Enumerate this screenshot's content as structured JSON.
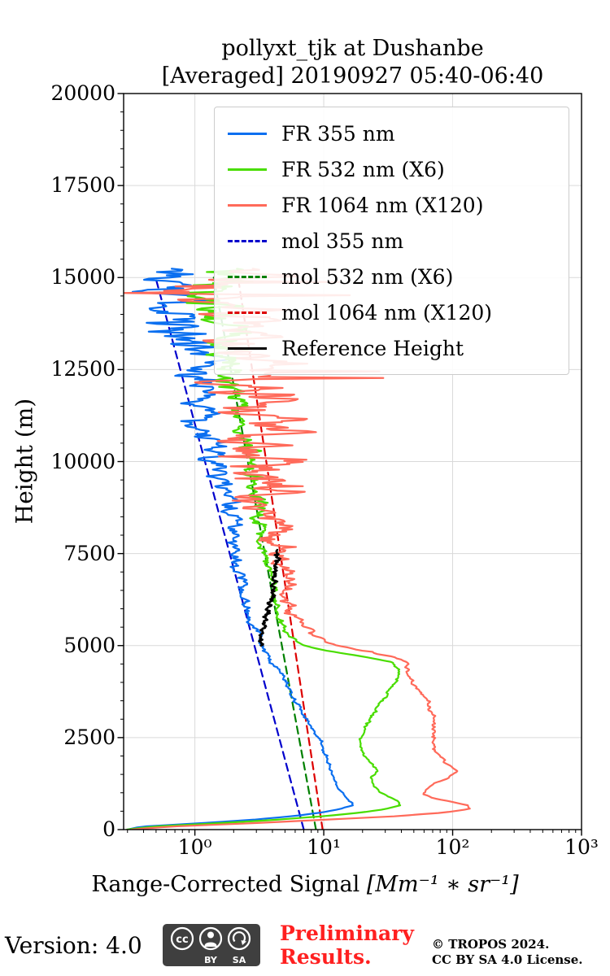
{
  "footer": {
    "version": "Version: 4.0",
    "preliminary_line1": "Preliminary",
    "preliminary_line2": "Results.",
    "copyright_line1": "© TROPOS 2024.",
    "copyright_line2": "CC BY SA 4.0 License.",
    "cc_badge": "cc BY SA"
  },
  "chart_data": {
    "type": "line",
    "title": "pollyxt_tjk at Dushanbe",
    "subtitle": "[Averaged] 20190927 05:40-06:40",
    "xlabel": "Range-Corrected Signal",
    "xlabel_unit": "[Mm⁻¹ ∗ sr⁻¹]",
    "ylabel": "Height (m)",
    "xscale": "log",
    "xlim": [
      0.28,
      1000
    ],
    "ylim": [
      0,
      20000
    ],
    "grid": true,
    "legend_position": "top-center",
    "yticks": [
      0,
      2500,
      5000,
      7500,
      10000,
      12500,
      15000,
      17500,
      20000
    ],
    "xticks": [
      1,
      10,
      100,
      1000
    ],
    "xtick_labels": [
      "10⁰",
      "10¹",
      "10²",
      "10³"
    ],
    "grid_color": "#d9d9d9",
    "series": [
      {
        "name": "FR 355 nm",
        "color": "#0a6ff0",
        "dash": "solid",
        "width": 2.2,
        "step": 30,
        "zmin": 0,
        "zmax": 15250,
        "anchors": [
          [
            0,
            0.3
          ],
          [
            80,
            0.38
          ],
          [
            160,
            0.95
          ],
          [
            260,
            2.6
          ],
          [
            360,
            5.5
          ],
          [
            460,
            9.5
          ],
          [
            560,
            13.5
          ],
          [
            660,
            16.5
          ],
          [
            760,
            16.0
          ],
          [
            900,
            14.5
          ],
          [
            1100,
            13.0
          ],
          [
            1400,
            12.0
          ],
          [
            1700,
            11.2
          ],
          [
            2000,
            10.4
          ],
          [
            2300,
            9.6
          ],
          [
            2600,
            8.6
          ],
          [
            3000,
            7.3
          ],
          [
            3400,
            6.3
          ],
          [
            3800,
            5.4
          ],
          [
            4200,
            4.7
          ],
          [
            4600,
            3.95
          ],
          [
            5000,
            3.3
          ],
          [
            5500,
            3.0
          ],
          [
            6000,
            2.6
          ],
          [
            6500,
            2.45
          ],
          [
            7000,
            2.3
          ],
          [
            7500,
            2.15
          ],
          [
            8000,
            2.0
          ],
          [
            8500,
            1.87
          ],
          [
            9000,
            1.75
          ],
          [
            9500,
            1.6
          ],
          [
            10000,
            1.45
          ],
          [
            10500,
            1.35
          ],
          [
            11000,
            1.25
          ],
          [
            11500,
            1.15
          ],
          [
            12000,
            1.05
          ],
          [
            12500,
            0.97
          ],
          [
            13000,
            0.9
          ],
          [
            13500,
            0.84
          ],
          [
            14000,
            0.78
          ],
          [
            14500,
            0.73
          ],
          [
            15000,
            0.68
          ],
          [
            15250,
            0.66
          ]
        ],
        "noise_dex": [
          [
            0,
            0.008
          ],
          [
            4500,
            0.02
          ],
          [
            8000,
            0.05
          ],
          [
            10000,
            0.09
          ],
          [
            12000,
            0.16
          ],
          [
            13500,
            0.22
          ],
          [
            15300,
            0.24
          ]
        ],
        "spikes": false
      },
      {
        "name": "FR 532 nm (X6)",
        "color": "#49dd00",
        "dash": "solid",
        "width": 2.2,
        "step": 30,
        "zmin": 0,
        "zmax": 15250,
        "anchors": [
          [
            0,
            0.3
          ],
          [
            80,
            0.45
          ],
          [
            160,
            1.3
          ],
          [
            260,
            4.0
          ],
          [
            360,
            9.5
          ],
          [
            460,
            19
          ],
          [
            560,
            30
          ],
          [
            660,
            39
          ],
          [
            760,
            38
          ],
          [
            860,
            33
          ],
          [
            1000,
            28
          ],
          [
            1200,
            24
          ],
          [
            1400,
            23
          ],
          [
            1600,
            26
          ],
          [
            1800,
            23
          ],
          [
            2000,
            20
          ],
          [
            2300,
            19
          ],
          [
            2600,
            20
          ],
          [
            2900,
            22
          ],
          [
            3200,
            25
          ],
          [
            3500,
            28
          ],
          [
            3800,
            33
          ],
          [
            4000,
            36
          ],
          [
            4200,
            38
          ],
          [
            4400,
            38
          ],
          [
            4550,
            33
          ],
          [
            4700,
            20
          ],
          [
            4850,
            11
          ],
          [
            5000,
            7.0
          ],
          [
            5200,
            5.6
          ],
          [
            5400,
            5.0
          ],
          [
            5700,
            4.7
          ],
          [
            6000,
            4.35
          ],
          [
            6500,
            4.05
          ],
          [
            7000,
            3.75
          ],
          [
            7500,
            3.5
          ],
          [
            8000,
            3.3
          ],
          [
            8500,
            3.1
          ],
          [
            9000,
            2.92
          ],
          [
            9500,
            2.75
          ],
          [
            10000,
            2.6
          ],
          [
            10500,
            2.45
          ],
          [
            11000,
            2.3
          ],
          [
            11500,
            2.17
          ],
          [
            12000,
            2.05
          ],
          [
            12500,
            1.94
          ],
          [
            13000,
            1.83
          ],
          [
            13500,
            1.73
          ],
          [
            14000,
            1.63
          ],
          [
            14500,
            1.53
          ],
          [
            15000,
            1.44
          ],
          [
            15250,
            1.4
          ]
        ],
        "noise_dex": [
          [
            0,
            0.008
          ],
          [
            4500,
            0.015
          ],
          [
            8000,
            0.04
          ],
          [
            11000,
            0.08
          ],
          [
            13000,
            0.15
          ],
          [
            14200,
            0.22
          ],
          [
            15300,
            0.25
          ]
        ],
        "spikes": false
      },
      {
        "name": "FR 1064 nm (X120)",
        "color": "#ff6a5a",
        "dash": "solid",
        "width": 2.2,
        "step": 30,
        "zmin": 0,
        "zmax": 15250,
        "anchors": [
          [
            0,
            0.32
          ],
          [
            80,
            0.6
          ],
          [
            160,
            2.2
          ],
          [
            260,
            9
          ],
          [
            360,
            34
          ],
          [
            460,
            85
          ],
          [
            560,
            135
          ],
          [
            660,
            128
          ],
          [
            760,
            95
          ],
          [
            860,
            68
          ],
          [
            960,
            60
          ],
          [
            1100,
            62
          ],
          [
            1250,
            72
          ],
          [
            1400,
            90
          ],
          [
            1550,
            105
          ],
          [
            1700,
            101
          ],
          [
            1850,
            88
          ],
          [
            2000,
            78
          ],
          [
            2200,
            72
          ],
          [
            2500,
            70
          ],
          [
            2800,
            71
          ],
          [
            3100,
            69
          ],
          [
            3400,
            64
          ],
          [
            3700,
            56
          ],
          [
            4000,
            49
          ],
          [
            4300,
            45
          ],
          [
            4550,
            44
          ],
          [
            4700,
            36
          ],
          [
            4850,
            21
          ],
          [
            5000,
            13
          ],
          [
            5200,
            9.2
          ],
          [
            5500,
            7.2
          ],
          [
            6000,
            5.4
          ],
          [
            6500,
            5.1
          ],
          [
            7000,
            4.85
          ],
          [
            7500,
            4.6
          ],
          [
            8000,
            4.4
          ],
          [
            8500,
            4.15
          ],
          [
            9000,
            3.95
          ],
          [
            9500,
            3.75
          ],
          [
            10000,
            3.58
          ],
          [
            10500,
            3.4
          ],
          [
            11000,
            3.24
          ],
          [
            11500,
            3.08
          ],
          [
            12000,
            2.93
          ],
          [
            12500,
            2.79
          ],
          [
            13000,
            2.65
          ],
          [
            13500,
            2.52
          ],
          [
            14000,
            2.4
          ],
          [
            14500,
            2.28
          ],
          [
            15000,
            2.17
          ],
          [
            15250,
            2.12
          ]
        ],
        "noise_dex": [
          [
            0,
            0.01
          ],
          [
            4500,
            0.02
          ],
          [
            7000,
            0.06
          ],
          [
            8500,
            0.15
          ],
          [
            9500,
            0.28
          ],
          [
            12000,
            0.31
          ],
          [
            15300,
            0.34
          ]
        ],
        "spikes": true
      },
      {
        "name": "mol 355 nm",
        "color": "#0000cc",
        "dash": "dashed",
        "width": 2.2,
        "step": 500,
        "zmin": 0,
        "zmax": 15300,
        "anchors": [
          [
            0,
            7.0
          ],
          [
            15300,
            0.47
          ]
        ],
        "noise_dex": [
          [
            0,
            0
          ],
          [
            15300,
            0
          ]
        ],
        "spikes": false
      },
      {
        "name": "mol 532 nm (X6)",
        "color": "#008000",
        "dash": "dashed",
        "width": 2.2,
        "step": 500,
        "zmin": 0,
        "zmax": 15300,
        "anchors": [
          [
            0,
            8.7
          ],
          [
            15300,
            1.35
          ]
        ],
        "noise_dex": [
          [
            0,
            0
          ],
          [
            15300,
            0
          ]
        ],
        "spikes": false
      },
      {
        "name": "mol 1064 nm (X120)",
        "color": "#dd0000",
        "dash": "dashed",
        "width": 2.2,
        "step": 500,
        "zmin": 0,
        "zmax": 15300,
        "anchors": [
          [
            0,
            9.8
          ],
          [
            15300,
            2.1
          ]
        ],
        "noise_dex": [
          [
            0,
            0
          ],
          [
            15300,
            0
          ]
        ],
        "spikes": false
      },
      {
        "name": "Reference Height",
        "color": "#000000",
        "dash": "solid",
        "width": 2.6,
        "step": 20,
        "zmin": 5000,
        "zmax": 7600,
        "anchors": [
          [
            5000,
            3.2
          ],
          [
            5300,
            3.35
          ],
          [
            5600,
            3.5
          ],
          [
            5900,
            3.65
          ],
          [
            6200,
            3.8
          ],
          [
            6500,
            3.95
          ],
          [
            6800,
            4.1
          ],
          [
            7100,
            4.25
          ],
          [
            7400,
            4.35
          ],
          [
            7600,
            4.4
          ]
        ],
        "noise_dex": [
          [
            5000,
            0.02
          ],
          [
            7600,
            0.025
          ]
        ],
        "spikes": false
      }
    ]
  }
}
